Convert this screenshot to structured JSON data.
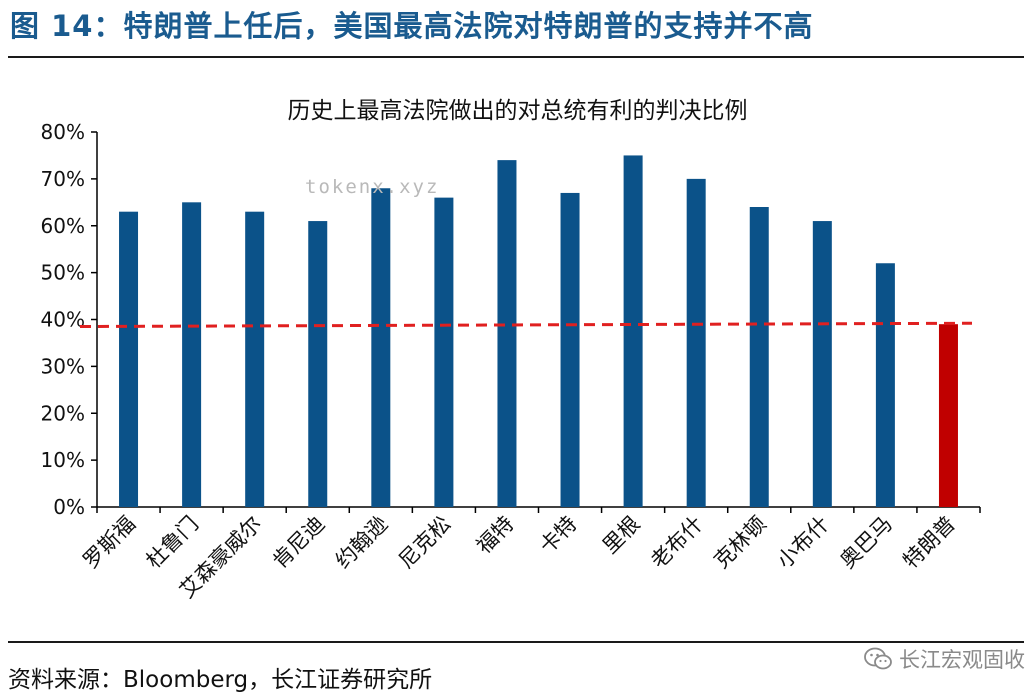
{
  "figure": {
    "title": "图 14：特朗普上任后，美国最高法院对特朗普的支持并不高",
    "source": "资料来源：Bloomberg，长江证券研究所",
    "watermark": "tokenx.xyz",
    "account_name": "长江宏观固收",
    "account_icon": "wechat-icon"
  },
  "colors": {
    "title": "#1a5b8f",
    "bar": "#0b5289",
    "highlight_bar": "#c00000",
    "reference_line": "#e02020"
  },
  "chart_data": {
    "type": "bar",
    "title": "历史上最高法院做出的对总统有利的判决比例",
    "categories": [
      "罗斯福",
      "杜鲁门",
      "艾森豪威尔",
      "肯尼迪",
      "约翰逊",
      "尼克松",
      "福特",
      "卡特",
      "里根",
      "老布什",
      "克林顿",
      "小布什",
      "奥巴马",
      "特朗普"
    ],
    "values": [
      63,
      65,
      63,
      61,
      68,
      66,
      74,
      67,
      75,
      70,
      64,
      61,
      52,
      39
    ],
    "value_unit": "%",
    "highlight_category": "特朗普",
    "reference_line": {
      "style": "dashed",
      "from_value": 38.5,
      "to_value": 39.2
    },
    "ylim": [
      0,
      80
    ],
    "yticks": [
      "0%",
      "10%",
      "20%",
      "30%",
      "40%",
      "50%",
      "60%",
      "70%",
      "80%"
    ],
    "grid": false,
    "xlabel": "",
    "ylabel": ""
  }
}
